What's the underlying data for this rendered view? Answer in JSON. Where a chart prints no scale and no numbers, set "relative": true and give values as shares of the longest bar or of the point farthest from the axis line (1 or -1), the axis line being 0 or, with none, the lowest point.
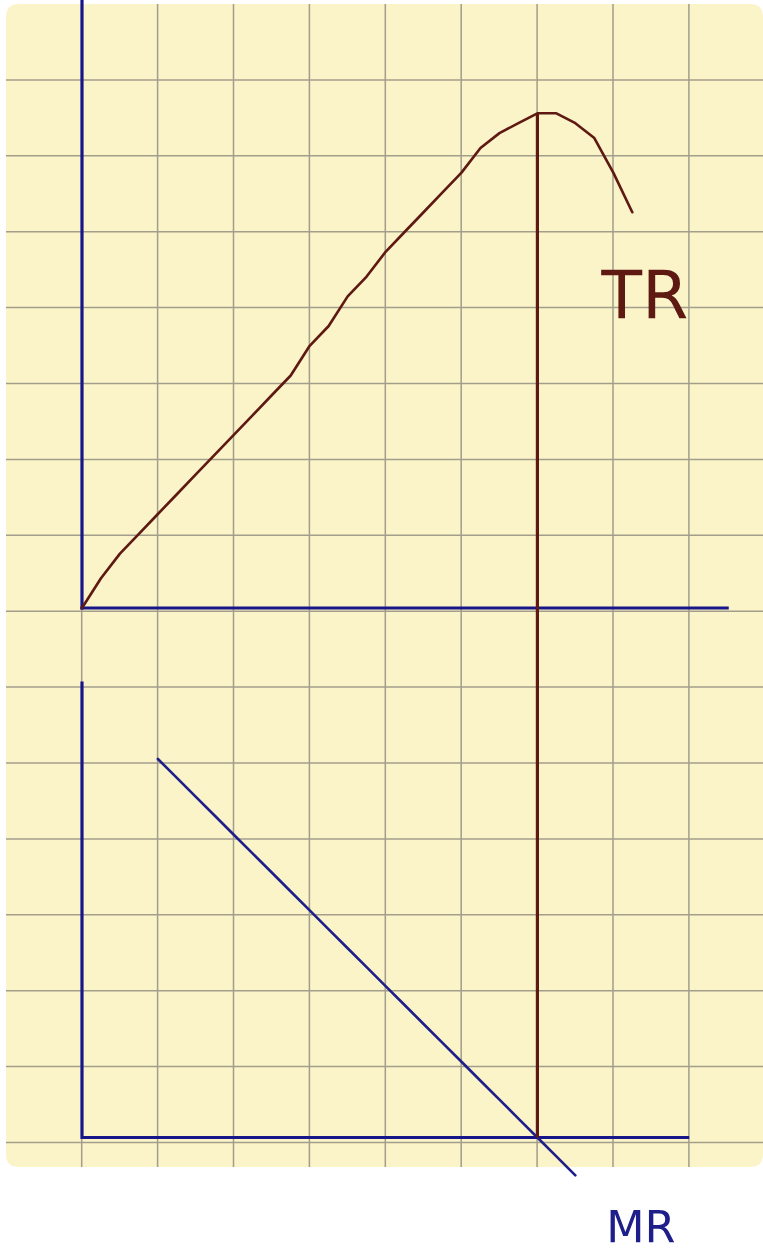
{
  "chart_data": [
    {
      "type": "line",
      "relative": true,
      "categories": [
        null,
        null,
        null,
        null,
        null,
        null,
        null,
        null,
        null,
        null,
        null,
        null,
        null,
        null,
        null,
        null,
        null,
        null,
        null,
        null,
        null,
        null,
        null,
        null,
        null,
        null,
        null,
        null,
        null,
        null,
        null,
        null,
        null,
        null,
        null
      ],
      "series": [
        {
          "name": "TR",
          "color": "#5e1a12",
          "values": [
            0,
            0.06,
            0.11,
            0.15,
            0.19,
            0.23,
            0.27,
            0.31,
            0.35,
            0.39,
            0.43,
            0.47,
            0.53,
            0.57,
            0.63,
            0.67,
            0.72,
            0.76,
            0.8,
            0.84,
            0.88,
            0.93,
            0.96,
            0.98,
            1,
            1,
            0.98,
            0.95,
            0.88,
            0.8,
            null,
            null,
            null,
            null,
            null
          ]
        }
      ],
      "grid": true
    },
    {
      "type": "line",
      "relative": true,
      "categories": [
        null,
        null,
        null,
        null,
        null,
        null,
        null,
        null,
        null,
        null,
        null,
        null,
        null,
        null,
        null,
        null,
        null,
        null,
        null,
        null,
        null,
        null,
        null,
        null,
        null,
        null,
        null,
        null,
        null,
        null,
        null,
        null,
        null
      ],
      "series": [
        {
          "name": "MR",
          "color": "#1f1f8c",
          "values": [
            null,
            null,
            null,
            null,
            1,
            0.95,
            0.9,
            0.85,
            0.8,
            0.75,
            0.7,
            0.65,
            0.6,
            0.55,
            0.5,
            0.45,
            0.4,
            0.35,
            0.3,
            0.25,
            0.2,
            0.15,
            0.1,
            0.05,
            0,
            -0.05,
            -0.1,
            null,
            null,
            null,
            null,
            null,
            null
          ]
        }
      ],
      "ref_lines": [
        {
          "axis": "y",
          "value": 0,
          "color": "#16168a"
        }
      ],
      "grid": true
    }
  ]
}
